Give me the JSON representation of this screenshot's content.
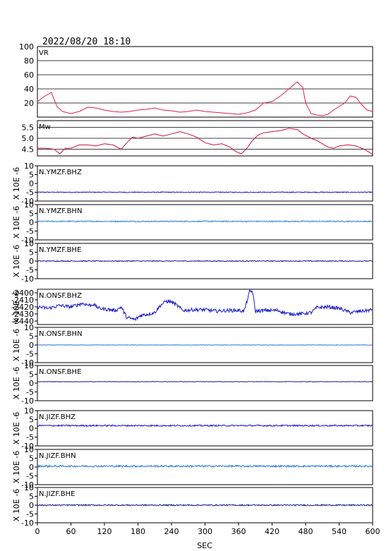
{
  "title": "2022/08/20 18:10",
  "colors": {
    "vr": "#e0204a",
    "mw": "#d01040",
    "bhz": "#1a1acc",
    "bhn": "#2a7ad8",
    "bhe": "#1a1a88",
    "grid": "#000000"
  },
  "chart_data": {
    "type": "line",
    "xlabel": "SEC",
    "xlim": [
      0,
      600
    ],
    "xticks": [
      "0",
      "60",
      "120",
      "180",
      "240",
      "300",
      "360",
      "420",
      "480",
      "540",
      "600"
    ],
    "panels": [
      {
        "id": "vr",
        "label": "VR",
        "ylim": [
          0,
          100
        ],
        "yticks": [
          "20",
          "40",
          "60",
          "80",
          "100"
        ],
        "ylabel": "",
        "color": "vr",
        "points": [
          [
            0,
            22
          ],
          [
            10,
            28
          ],
          [
            25,
            35
          ],
          [
            35,
            15
          ],
          [
            45,
            8
          ],
          [
            60,
            5
          ],
          [
            75,
            8
          ],
          [
            90,
            14
          ],
          [
            105,
            13
          ],
          [
            120,
            10
          ],
          [
            135,
            8
          ],
          [
            150,
            7
          ],
          [
            165,
            8
          ],
          [
            180,
            10
          ],
          [
            195,
            11
          ],
          [
            210,
            13
          ],
          [
            225,
            10
          ],
          [
            240,
            9
          ],
          [
            255,
            7
          ],
          [
            270,
            8
          ],
          [
            285,
            10
          ],
          [
            300,
            8
          ],
          [
            315,
            7
          ],
          [
            330,
            6
          ],
          [
            345,
            5
          ],
          [
            360,
            4
          ],
          [
            375,
            6
          ],
          [
            390,
            10
          ],
          [
            405,
            20
          ],
          [
            420,
            22
          ],
          [
            435,
            30
          ],
          [
            450,
            40
          ],
          [
            465,
            50
          ],
          [
            475,
            42
          ],
          [
            480,
            20
          ],
          [
            490,
            5
          ],
          [
            500,
            3
          ],
          [
            510,
            2
          ],
          [
            520,
            4
          ],
          [
            530,
            10
          ],
          [
            540,
            15
          ],
          [
            550,
            20
          ],
          [
            560,
            30
          ],
          [
            570,
            28
          ],
          [
            580,
            18
          ],
          [
            590,
            10
          ],
          [
            600,
            8
          ]
        ]
      },
      {
        "id": "mw",
        "label": "Mw",
        "ylim": [
          4.2,
          5.8
        ],
        "yticks": [
          "4.5",
          "5.0",
          "5.5"
        ],
        "ylabel": "",
        "color": "mw",
        "points": [
          [
            0,
            4.55
          ],
          [
            15,
            4.55
          ],
          [
            30,
            4.5
          ],
          [
            40,
            4.3
          ],
          [
            50,
            4.55
          ],
          [
            60,
            4.55
          ],
          [
            75,
            4.7
          ],
          [
            90,
            4.7
          ],
          [
            105,
            4.65
          ],
          [
            120,
            4.75
          ],
          [
            135,
            4.7
          ],
          [
            150,
            4.5
          ],
          [
            160,
            4.8
          ],
          [
            170,
            5.05
          ],
          [
            180,
            5.0
          ],
          [
            195,
            5.1
          ],
          [
            210,
            5.2
          ],
          [
            225,
            5.1
          ],
          [
            240,
            5.2
          ],
          [
            255,
            5.3
          ],
          [
            270,
            5.2
          ],
          [
            285,
            5.05
          ],
          [
            300,
            4.8
          ],
          [
            315,
            4.7
          ],
          [
            330,
            4.75
          ],
          [
            345,
            4.6
          ],
          [
            355,
            4.4
          ],
          [
            365,
            4.3
          ],
          [
            375,
            4.55
          ],
          [
            385,
            4.9
          ],
          [
            395,
            5.15
          ],
          [
            405,
            5.25
          ],
          [
            420,
            5.3
          ],
          [
            435,
            5.35
          ],
          [
            450,
            5.45
          ],
          [
            465,
            5.4
          ],
          [
            475,
            5.2
          ],
          [
            490,
            5.0
          ],
          [
            500,
            4.9
          ],
          [
            510,
            4.75
          ],
          [
            520,
            4.6
          ],
          [
            530,
            4.55
          ],
          [
            540,
            4.65
          ],
          [
            555,
            4.7
          ],
          [
            570,
            4.65
          ],
          [
            585,
            4.5
          ],
          [
            595,
            4.35
          ],
          [
            600,
            4.25
          ]
        ]
      },
      {
        "id": "ymzf-bhz",
        "label": "N.YMZF.BHZ",
        "ylim": [
          -10,
          10
        ],
        "yticks": [
          "-10",
          "-5",
          "0",
          "5",
          "10"
        ],
        "ylabel": "X 10E -6",
        "color": "bhz",
        "trace": "flat",
        "level": -5.0,
        "noise": 0.25
      },
      {
        "id": "ymzf-bhn",
        "label": "N.YMZF.BHN",
        "ylim": [
          -10,
          10
        ],
        "yticks": [
          "-10",
          "-5",
          "0",
          "5",
          "10"
        ],
        "ylabel": "X 10E -6",
        "color": "bhn",
        "trace": "flat",
        "level": 0.5,
        "noise": 0.3
      },
      {
        "id": "ymzf-bhe",
        "label": "N.YMZF.BHE",
        "ylim": [
          -10,
          10
        ],
        "yticks": [
          "-10",
          "-5",
          "0",
          "5",
          "10"
        ],
        "ylabel": "X 10E -6",
        "color": "bhe",
        "trace": "flat",
        "level": 0.0,
        "noise": 0.25
      },
      {
        "id": "onsf-bhz",
        "label": "N.ONSF.BHZ",
        "ylim": [
          -2445,
          -2395
        ],
        "yticks": [
          "-2440",
          "-2430",
          "-2420",
          "-2410",
          "-2400"
        ],
        "ylabel": "X 10E -6",
        "color": "bhz",
        "points": [
          [
            0,
            -2420
          ],
          [
            20,
            -2422
          ],
          [
            40,
            -2418
          ],
          [
            60,
            -2420
          ],
          [
            80,
            -2415
          ],
          [
            95,
            -2418
          ],
          [
            100,
            -2416
          ],
          [
            110,
            -2422
          ],
          [
            130,
            -2424
          ],
          [
            140,
            -2425
          ],
          [
            150,
            -2420
          ],
          [
            160,
            -2435
          ],
          [
            175,
            -2438
          ],
          [
            185,
            -2432
          ],
          [
            200,
            -2430
          ],
          [
            210,
            -2428
          ],
          [
            220,
            -2418
          ],
          [
            230,
            -2412
          ],
          [
            240,
            -2413
          ],
          [
            250,
            -2418
          ],
          [
            260,
            -2425
          ],
          [
            280,
            -2424
          ],
          [
            300,
            -2424
          ],
          [
            320,
            -2426
          ],
          [
            340,
            -2425
          ],
          [
            360,
            -2425
          ],
          [
            370,
            -2426
          ],
          [
            380,
            -2398
          ],
          [
            385,
            -2398
          ],
          [
            390,
            -2426
          ],
          [
            410,
            -2425
          ],
          [
            430,
            -2425
          ],
          [
            450,
            -2430
          ],
          [
            470,
            -2430
          ],
          [
            490,
            -2428
          ],
          [
            500,
            -2421
          ],
          [
            520,
            -2420
          ],
          [
            540,
            -2422
          ],
          [
            560,
            -2428
          ],
          [
            580,
            -2426
          ],
          [
            600,
            -2424
          ]
        ],
        "noise": 2.5
      },
      {
        "id": "onsf-bhn",
        "label": "N.ONSF.BHN",
        "ylim": [
          -10,
          10
        ],
        "yticks": [
          "-10",
          "-5",
          "0",
          "5",
          "10"
        ],
        "ylabel": "X 10E -6",
        "color": "bhn",
        "trace": "flat",
        "level": 0.0,
        "noise": 0.12
      },
      {
        "id": "onsf-bhe",
        "label": "N.ONSF.BHE",
        "ylim": [
          -10,
          10
        ],
        "yticks": [
          "-10",
          "-5",
          "0",
          "5",
          "10"
        ],
        "ylabel": "X 10E -6",
        "color": "bhe",
        "trace": "flat",
        "level": 0.8,
        "noise": 0.12
      },
      {
        "id": "jizf-bhz",
        "label": "N.JIZF.BHZ",
        "ylim": [
          -10,
          10
        ],
        "yticks": [
          "-10",
          "-5",
          "0",
          "5",
          "10"
        ],
        "ylabel": "X 10E -6",
        "color": "bhz",
        "trace": "flat",
        "level": 1.5,
        "noise": 0.4
      },
      {
        "id": "jizf-bhn",
        "label": "N.JIZF.BHN",
        "ylim": [
          -10,
          10
        ],
        "yticks": [
          "-10",
          "-5",
          "0",
          "5",
          "10"
        ],
        "ylabel": "X 10E -6",
        "color": "bhn",
        "trace": "flat",
        "level": 0.5,
        "noise": 0.5
      },
      {
        "id": "jizf-bhe",
        "label": "N.JIZF.BHE",
        "ylim": [
          -10,
          10
        ],
        "yticks": [
          "-10",
          "-5",
          "0",
          "5",
          "10"
        ],
        "ylabel": "X 10E -6",
        "color": "bhe",
        "trace": "flat",
        "level": 0.0,
        "noise": 0.35
      }
    ]
  }
}
